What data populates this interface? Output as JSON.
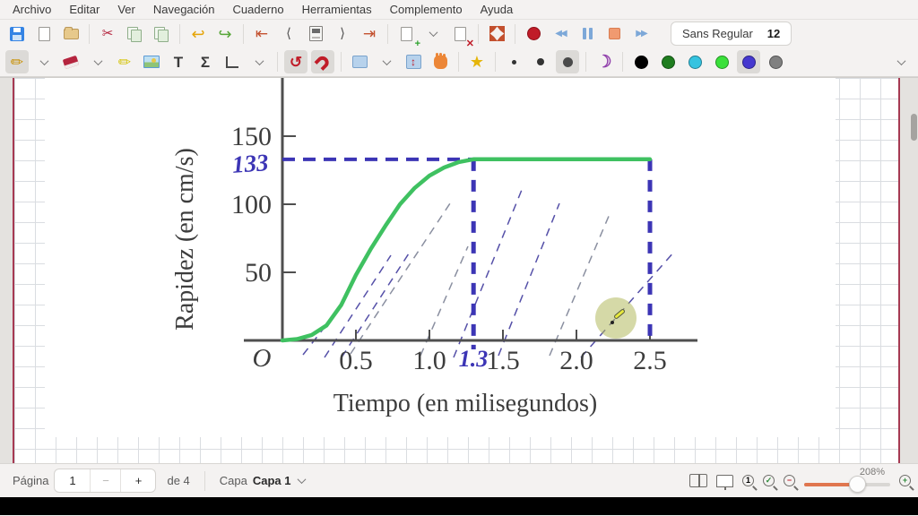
{
  "menu": {
    "items": [
      "Archivo",
      "Editar",
      "Ver",
      "Navegación",
      "Cuaderno",
      "Herramientas",
      "Complemento",
      "Ayuda"
    ]
  },
  "toolbar": {
    "font_name": "Sans Regular",
    "font_size": "12",
    "glyphs": {
      "cut": "✂",
      "undo": "↩",
      "redo": "↪",
      "first_page": "⇤",
      "prev_page": "⟨",
      "next_page": "⟩",
      "last_page": "⇥",
      "add_badge": "+",
      "delete_badge": "✕",
      "rewind": "◀◀",
      "forward": "▶▶",
      "pen": "✏",
      "highlighter": "✏",
      "text_tool": "T",
      "math_tool": "Σ",
      "shape_recognizer": "↺",
      "star": "★",
      "moon": "☽",
      "vspace": "↕"
    },
    "pen_colors": [
      "#000000",
      "#1f7d1f",
      "#35c3e0",
      "#3ae03a",
      "#4538cf",
      "#808080"
    ],
    "selected_color_index": 4
  },
  "statusbar": {
    "page_label": "Página",
    "page_value": "1",
    "minus_label": "−",
    "plus_label": "+",
    "total_label": "de 4",
    "layer_label": "Capa",
    "layer_value": "Capa 1",
    "zoom_percent": "208%",
    "zoom_100_sym": "1",
    "zoom_fit_sym": "✓",
    "zoom_out_sym": "−",
    "zoom_in_sym": "+"
  },
  "chart_data": {
    "type": "line",
    "xlabel": "Tiempo (en milisegundos)",
    "ylabel": "Rapidez (en cm/s)",
    "origin_label": "O",
    "x_ticks": [
      0.5,
      1.0,
      1.5,
      2.0,
      2.5
    ],
    "y_ticks": [
      50,
      100,
      150
    ],
    "xlim": [
      0,
      2.75
    ],
    "ylim": [
      0,
      170
    ],
    "grid": false,
    "series": [
      {
        "name": "rapidez",
        "color": "#3fc161",
        "points": [
          [
            0,
            0
          ],
          [
            0.1,
            1
          ],
          [
            0.2,
            4
          ],
          [
            0.3,
            11
          ],
          [
            0.4,
            26
          ],
          [
            0.5,
            48
          ],
          [
            0.6,
            67
          ],
          [
            0.7,
            84
          ],
          [
            0.8,
            100
          ],
          [
            0.9,
            112
          ],
          [
            1.0,
            121
          ],
          [
            1.1,
            127
          ],
          [
            1.2,
            131
          ],
          [
            1.3,
            133
          ],
          [
            1.45,
            133
          ],
          [
            2.5,
            133
          ]
        ]
      }
    ],
    "annotations": {
      "ink_color": "#3c35b5",
      "plateau_value_label": "133",
      "plateau_value": 133,
      "t_plateau_label": "1.3",
      "t_plateau": 1.3,
      "t_end": 2.5,
      "hatch": [
        [
          288,
          309,
          313,
          277,
          "ink"
        ],
        [
          312,
          312,
          386,
          198,
          "ink"
        ],
        [
          331,
          312,
          406,
          196,
          "ink"
        ],
        [
          341,
          308,
          452,
          140,
          "gray"
        ],
        [
          419,
          310,
          472,
          188,
          "gray"
        ],
        [
          456,
          312,
          534,
          120,
          "ink"
        ],
        [
          506,
          310,
          574,
          140,
          "ink"
        ],
        [
          563,
          310,
          630,
          152,
          "gray"
        ],
        [
          598,
          312,
          702,
          194,
          "ink"
        ]
      ]
    }
  }
}
